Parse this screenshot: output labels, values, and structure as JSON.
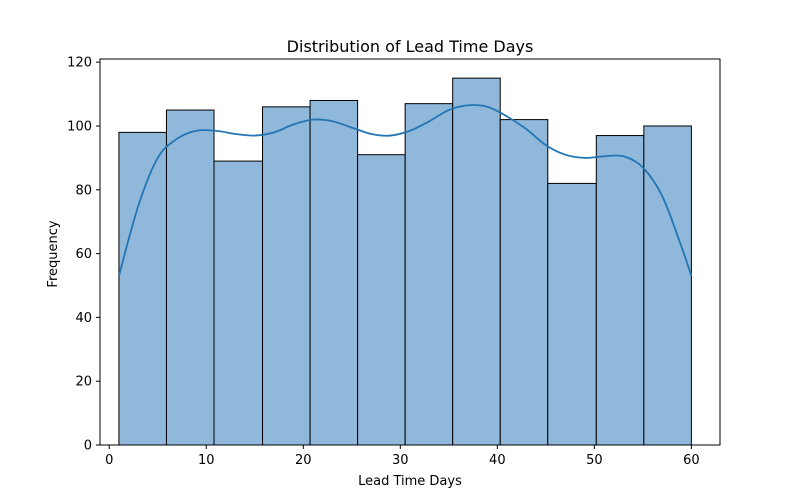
{
  "chart_data": {
    "type": "bar",
    "title": "Distribution of Lead Time Days",
    "xlabel": "Lead Time Days",
    "ylabel": "Frequency",
    "xlim": [
      -0.95,
      62.95
    ],
    "ylim": [
      0,
      121
    ],
    "x_ticks": [
      0,
      10,
      20,
      30,
      40,
      50,
      60
    ],
    "y_ticks": [
      0,
      20,
      40,
      60,
      80,
      100,
      120
    ],
    "bins": [
      {
        "start": 1.0,
        "end": 5.9,
        "value": 98
      },
      {
        "start": 5.9,
        "end": 10.8,
        "value": 105
      },
      {
        "start": 10.8,
        "end": 15.8,
        "value": 89
      },
      {
        "start": 15.8,
        "end": 20.7,
        "value": 106
      },
      {
        "start": 20.7,
        "end": 25.6,
        "value": 108
      },
      {
        "start": 25.6,
        "end": 30.5,
        "value": 91
      },
      {
        "start": 30.5,
        "end": 35.4,
        "value": 107
      },
      {
        "start": 35.4,
        "end": 40.3,
        "value": 115
      },
      {
        "start": 40.3,
        "end": 45.2,
        "value": 102
      },
      {
        "start": 45.2,
        "end": 50.2,
        "value": 82
      },
      {
        "start": 50.2,
        "end": 55.1,
        "value": 97
      },
      {
        "start": 55.1,
        "end": 60.0,
        "value": 100
      }
    ],
    "kde": {
      "x": [
        1,
        3,
        5,
        7,
        9,
        11,
        13,
        15,
        17,
        19,
        21,
        23,
        25,
        27,
        29,
        31,
        33,
        35,
        37,
        39,
        41,
        43,
        45,
        47,
        49,
        51,
        53,
        55,
        57,
        59,
        60
      ],
      "y": [
        53,
        75,
        90,
        96,
        98.5,
        98.5,
        97.5,
        97,
        98,
        100.5,
        102,
        101.5,
        99.5,
        97.5,
        97,
        98.5,
        101.5,
        105,
        106.5,
        106,
        103,
        99,
        94,
        91,
        90,
        90.5,
        90.5,
        87,
        78,
        62,
        53
      ]
    },
    "grid": false,
    "bar_color": "#8fb8da",
    "bar_edge_color": "#000000",
    "line_color": "#2475b4"
  }
}
